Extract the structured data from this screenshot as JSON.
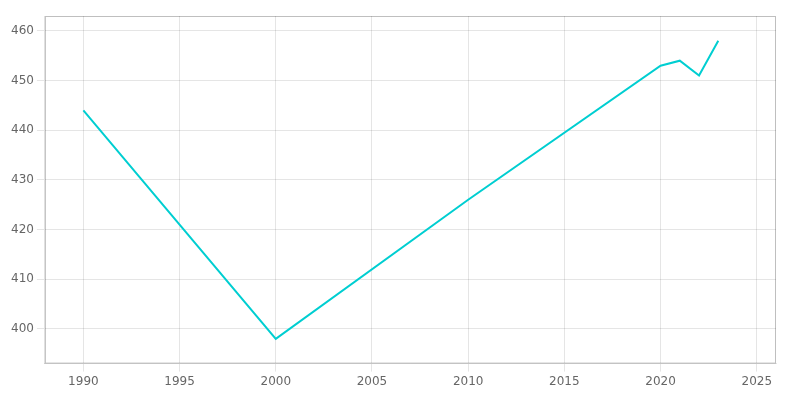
{
  "chart_data": {
    "type": "line",
    "x": [
      1990,
      2000,
      2010,
      2020,
      2021,
      2022,
      2023
    ],
    "values": [
      444,
      398,
      426,
      453,
      454,
      451,
      458
    ],
    "color": "#00CED1",
    "xlim": [
      1988,
      2026
    ],
    "ylim": [
      393,
      463
    ],
    "xticks": [
      1990,
      1995,
      2000,
      2005,
      2010,
      2015,
      2020,
      2025
    ],
    "yticks": [
      400,
      410,
      420,
      430,
      440,
      450,
      460
    ],
    "grid": true
  }
}
